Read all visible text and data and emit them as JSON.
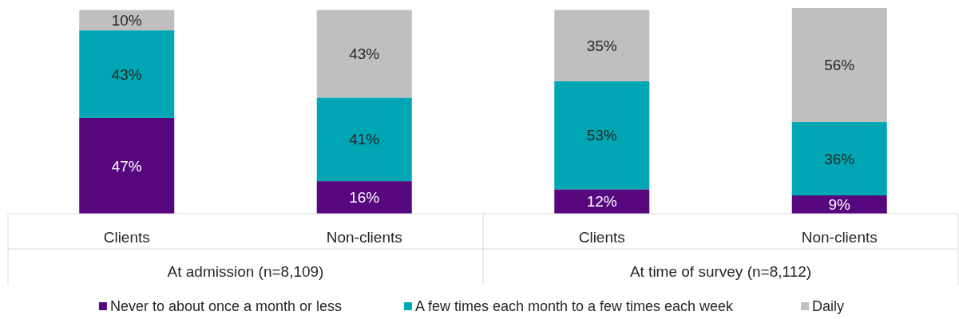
{
  "chart_data": {
    "type": "bar",
    "stacked": true,
    "categories": [
      "Clients",
      "Non-clients",
      "Clients",
      "Non-clients"
    ],
    "series": [
      {
        "name": "Never to about once a month or less",
        "color": "#56077e",
        "values": [
          47,
          16,
          12,
          9
        ],
        "value_labels": [
          "47%",
          "16%",
          "12%",
          "9%"
        ]
      },
      {
        "name": "A few times each month to a few times each week",
        "color": "#00a6b4",
        "values": [
          43,
          41,
          53,
          36
        ],
        "value_labels": [
          "43%",
          "41%",
          "53%",
          "36%"
        ]
      },
      {
        "name": "Daily",
        "color": "#bfbfbf",
        "values": [
          10,
          43,
          35,
          56
        ],
        "value_labels": [
          "10%",
          "43%",
          "35%",
          "56%"
        ]
      }
    ],
    "annotations": [
      "At admission (n=8,109)",
      "At time of survey (n=8,112)"
    ],
    "legend": "bottom"
  }
}
